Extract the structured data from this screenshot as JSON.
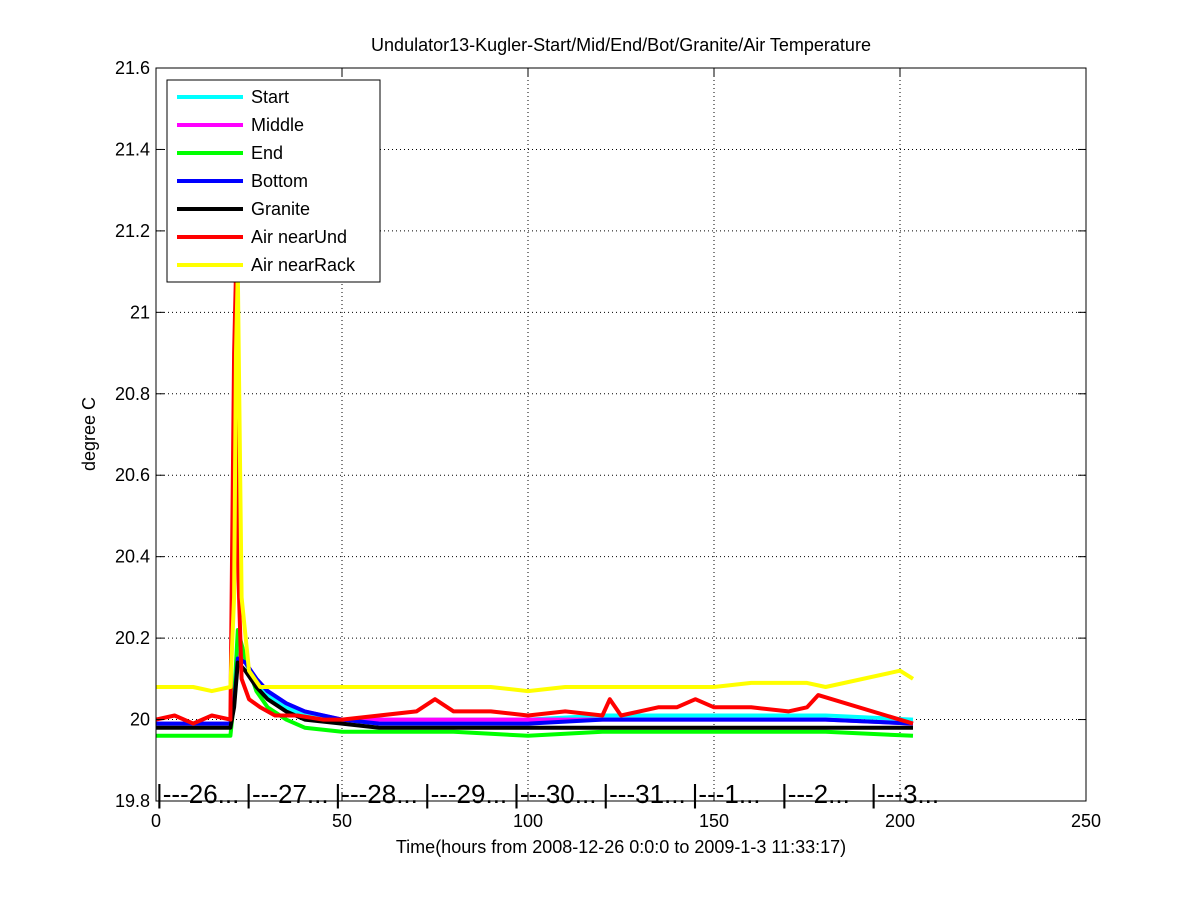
{
  "chart_data": {
    "type": "line",
    "title": "Undulator13-Kugler-Start/Mid/End/Bot/Granite/Air Temperature",
    "xlabel": "Time(hours from 2008-12-26 0:0:0 to 2009-1-3 11:33:17)",
    "ylabel": "degree C",
    "xlim": [
      0,
      250
    ],
    "ylim": [
      19.8,
      21.6
    ],
    "xticks": [
      0,
      50,
      100,
      150,
      200,
      250
    ],
    "yticks": [
      19.8,
      20,
      20.2,
      20.4,
      20.6,
      20.8,
      21,
      21.2,
      21.4,
      21.6
    ],
    "grid": true,
    "legend_position": "top-left",
    "day_markers": [
      {
        "label": "|---26...",
        "x": 0
      },
      {
        "label": "|---27...",
        "x": 24
      },
      {
        "label": "|---28...",
        "x": 48
      },
      {
        "label": "|---29...",
        "x": 72
      },
      {
        "label": "|---30...",
        "x": 96
      },
      {
        "label": "|---31...",
        "x": 120
      },
      {
        "label": "|---1...",
        "x": 144
      },
      {
        "label": "|---2...",
        "x": 168
      },
      {
        "label": "|---3...",
        "x": 192
      }
    ],
    "series": [
      {
        "name": "Start",
        "color": "#00ffff",
        "x": [
          0,
          10,
          20,
          21,
          22,
          24,
          27,
          30,
          35,
          40,
          50,
          60,
          80,
          100,
          120,
          140,
          160,
          180,
          203.5
        ],
        "y": [
          19.99,
          19.99,
          19.99,
          20.05,
          20.17,
          20.14,
          20.09,
          20.06,
          20.03,
          20.01,
          20.0,
          20.0,
          20.0,
          20.0,
          20.01,
          20.01,
          20.01,
          20.01,
          20.0
        ]
      },
      {
        "name": "Middle",
        "color": "#ff00ff",
        "x": [
          0,
          10,
          20,
          21,
          22,
          24,
          27,
          30,
          35,
          40,
          50,
          60,
          80,
          100,
          120,
          140,
          160,
          180,
          203.5
        ],
        "y": [
          19.99,
          19.99,
          19.99,
          20.04,
          20.16,
          20.14,
          20.1,
          20.07,
          20.04,
          20.02,
          20.0,
          20.0,
          20.0,
          20.0,
          20.0,
          20.0,
          20.0,
          20.0,
          19.99
        ]
      },
      {
        "name": "End",
        "color": "#00ff00",
        "x": [
          0,
          10,
          20,
          21,
          22,
          24,
          27,
          30,
          35,
          40,
          50,
          60,
          80,
          100,
          120,
          140,
          160,
          180,
          203.5
        ],
        "y": [
          19.96,
          19.96,
          19.96,
          20.05,
          20.22,
          20.15,
          20.07,
          20.03,
          20.0,
          19.98,
          19.97,
          19.97,
          19.97,
          19.96,
          19.97,
          19.97,
          19.97,
          19.97,
          19.96
        ]
      },
      {
        "name": "Bottom",
        "color": "#0000ff",
        "x": [
          0,
          10,
          20,
          21,
          22,
          24,
          27,
          30,
          35,
          40,
          50,
          60,
          80,
          100,
          120,
          140,
          160,
          180,
          203.5
        ],
        "y": [
          19.99,
          19.99,
          19.99,
          20.04,
          20.15,
          20.14,
          20.1,
          20.07,
          20.04,
          20.02,
          20.0,
          19.99,
          19.99,
          19.99,
          20.0,
          20.0,
          20.0,
          20.0,
          19.99
        ]
      },
      {
        "name": "Granite",
        "color": "#000000",
        "x": [
          0,
          10,
          20,
          21,
          22,
          24,
          27,
          30,
          35,
          40,
          50,
          60,
          80,
          100,
          120,
          140,
          160,
          180,
          203.5
        ],
        "y": [
          19.98,
          19.98,
          19.98,
          20.03,
          20.14,
          20.12,
          20.08,
          20.05,
          20.02,
          20.0,
          19.99,
          19.98,
          19.98,
          19.98,
          19.98,
          19.98,
          19.98,
          19.98,
          19.98
        ]
      },
      {
        "name": "Air nearUnd",
        "color": "#ff0000",
        "x": [
          0,
          5,
          10,
          15,
          20,
          21,
          21.5,
          22,
          23,
          25,
          28,
          32,
          38,
          45,
          50,
          60,
          70,
          75,
          80,
          90,
          100,
          110,
          120,
          122,
          125,
          135,
          140,
          145,
          150,
          160,
          170,
          175,
          178,
          203.5
        ],
        "y": [
          20.0,
          20.01,
          19.99,
          20.01,
          20.0,
          20.9,
          21.1,
          20.4,
          20.1,
          20.05,
          20.03,
          20.01,
          20.01,
          20.0,
          20.0,
          20.01,
          20.02,
          20.05,
          20.02,
          20.02,
          20.01,
          20.02,
          20.01,
          20.05,
          20.01,
          20.03,
          20.03,
          20.05,
          20.03,
          20.03,
          20.02,
          20.03,
          20.06,
          19.99
        ]
      },
      {
        "name": "Air nearRack",
        "color": "#ffff00",
        "x": [
          0,
          5,
          10,
          15,
          20,
          21,
          21.5,
          22,
          22.5,
          23,
          25,
          28,
          35,
          40,
          50,
          60,
          75,
          80,
          90,
          100,
          110,
          120,
          130,
          140,
          150,
          160,
          170,
          175,
          180,
          200,
          203.5
        ],
        "y": [
          20.08,
          20.08,
          20.08,
          20.07,
          20.08,
          20.3,
          20.9,
          21.1,
          20.7,
          20.3,
          20.12,
          20.08,
          20.08,
          20.08,
          20.08,
          20.08,
          20.08,
          20.08,
          20.08,
          20.07,
          20.08,
          20.08,
          20.08,
          20.08,
          20.08,
          20.09,
          20.09,
          20.09,
          20.08,
          20.12,
          20.1
        ]
      }
    ]
  }
}
